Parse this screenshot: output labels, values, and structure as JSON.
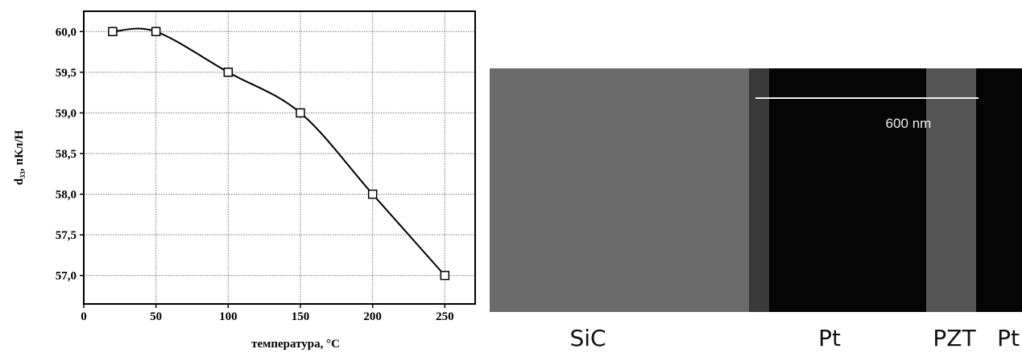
{
  "chart_data": {
    "type": "line",
    "x_label": "температура, °C",
    "y_label": "d₃₃, пКл/Н",
    "x": [
      20,
      50,
      100,
      150,
      200,
      250
    ],
    "values": [
      60.0,
      60.0,
      59.5,
      59.0,
      58.0,
      57.0
    ],
    "color": "#000000",
    "xlim": [
      0,
      271
    ],
    "ylim": [
      56.65,
      60.25
    ],
    "xticks": [
      0,
      50,
      100,
      150,
      200,
      250
    ],
    "yticks": [
      {
        "value": 57.0,
        "label": "57,0"
      },
      {
        "value": 57.5,
        "label": "57,5"
      },
      {
        "value": 58.0,
        "label": "58,0"
      },
      {
        "value": 58.5,
        "label": "58,5"
      },
      {
        "value": 59.0,
        "label": "59,0"
      },
      {
        "value": 59.5,
        "label": "59,5"
      },
      {
        "value": 60.0,
        "label": "60,0"
      }
    ],
    "grid": true
  },
  "image": {
    "scale_bar": "600 nm",
    "labels": [
      "SiC",
      "Pt",
      "PZT",
      "Pt"
    ]
  }
}
